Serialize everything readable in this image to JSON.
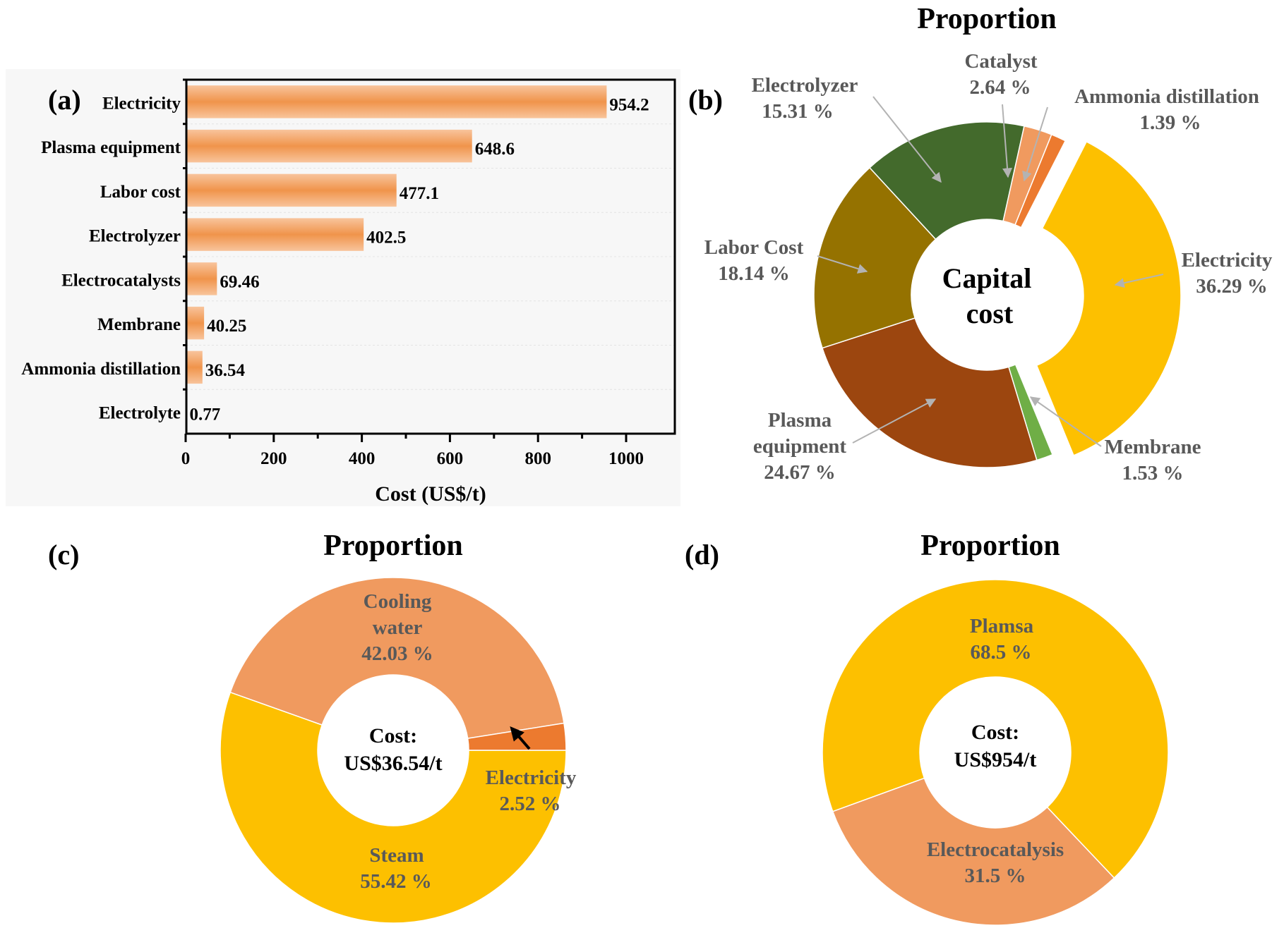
{
  "colors": {
    "bar": "#f19a55",
    "bar_light": "#f7b98a",
    "dark_green": "#436a2c",
    "olive": "#957200",
    "brown": "#9c460f",
    "light_green": "#6fae46",
    "yellow": "#fdc000",
    "salmon": "#f09a5f",
    "orange": "#ec7a2f",
    "label_gray": "#595959",
    "callout": "#b3b3b3"
  },
  "chart_data": [
    {
      "id": "a",
      "panel_label": "(a)",
      "type": "bar",
      "orientation": "horizontal",
      "categories": [
        "Electricity",
        "Plasma equipment",
        "Labor cost",
        "Electrolyzer",
        "Electrocatalysts",
        "Membrane",
        "Ammonia distillation",
        "Electrolyte"
      ],
      "values": [
        954.2,
        648.6,
        477.1,
        402.5,
        69.46,
        40.25,
        36.54,
        0.77
      ],
      "value_labels": [
        "954.2",
        "648.6",
        "477.1",
        "402.5",
        "69.46",
        "40.25",
        "36.54",
        "0.77"
      ],
      "xlabel": "Cost (US$/t)",
      "xlim": [
        0,
        1100
      ],
      "xticks": [
        0,
        200,
        400,
        600,
        800,
        1000
      ],
      "xtick_labels": [
        "0",
        "200",
        "400",
        "600",
        "800",
        "1000"
      ],
      "grid": true
    },
    {
      "id": "b",
      "panel_label": "(b)",
      "type": "pie",
      "title": "Proportion",
      "center_label": [
        "Capital",
        "cost"
      ],
      "slices": [
        {
          "name": "Electricity",
          "value": 36.29,
          "label": [
            "Electricity",
            "36.29 %"
          ],
          "color": "#fdc000",
          "exploded": true
        },
        {
          "name": "Membrane",
          "value": 1.53,
          "label": [
            "Membrane",
            "1.53 %"
          ],
          "color": "#6fae46",
          "exploded": false
        },
        {
          "name": "Plasma equipment",
          "value": 24.67,
          "label": [
            "Plasma",
            "equipment",
            "24.67 %"
          ],
          "color": "#9c460f",
          "exploded": false
        },
        {
          "name": "Labor Cost",
          "value": 18.14,
          "label": [
            "Labor Cost",
            "18.14 %"
          ],
          "color": "#957200",
          "exploded": false
        },
        {
          "name": "Electrolyzer",
          "value": 15.31,
          "label": [
            "Electrolyzer",
            "15.31 %"
          ],
          "color": "#436a2c",
          "exploded": false
        },
        {
          "name": "Catalyst",
          "value": 2.64,
          "label": [
            "Catalyst",
            "2.64 %"
          ],
          "color": "#f09a5f",
          "exploded": false
        },
        {
          "name": "Ammonia distillation",
          "value": 1.39,
          "label": [
            "Ammonia distillation",
            "1.39 %"
          ],
          "color": "#ec7a2f",
          "exploded": false
        }
      ]
    },
    {
      "id": "c",
      "panel_label": "(c)",
      "type": "pie",
      "title": "Proportion",
      "center_label": [
        "Cost:",
        "US$36.54/t"
      ],
      "slices": [
        {
          "name": "Cooling water",
          "value": 42.03,
          "label": [
            "Cooling",
            "water",
            "42.03 %"
          ],
          "color": "#f09a5f"
        },
        {
          "name": "Electricity",
          "value": 2.52,
          "label": [
            "Electricity",
            "2.52 %"
          ],
          "color": "#ec7a2f"
        },
        {
          "name": "Steam",
          "value": 55.42,
          "label": [
            "Steam",
            "55.42 %"
          ],
          "color": "#fdc000"
        }
      ]
    },
    {
      "id": "d",
      "panel_label": "(d)",
      "type": "pie",
      "title": "Proportion",
      "center_label": [
        "Cost:",
        "US$954/t"
      ],
      "slices": [
        {
          "name": "Plamsa",
          "value": 68.5,
          "label": [
            "Plamsa",
            "68.5 %"
          ],
          "color": "#fdc000"
        },
        {
          "name": "Electrocatalysis",
          "value": 31.5,
          "label": [
            "Electrocatalysis",
            "31.5 %"
          ],
          "color": "#f09a5f"
        }
      ]
    }
  ]
}
